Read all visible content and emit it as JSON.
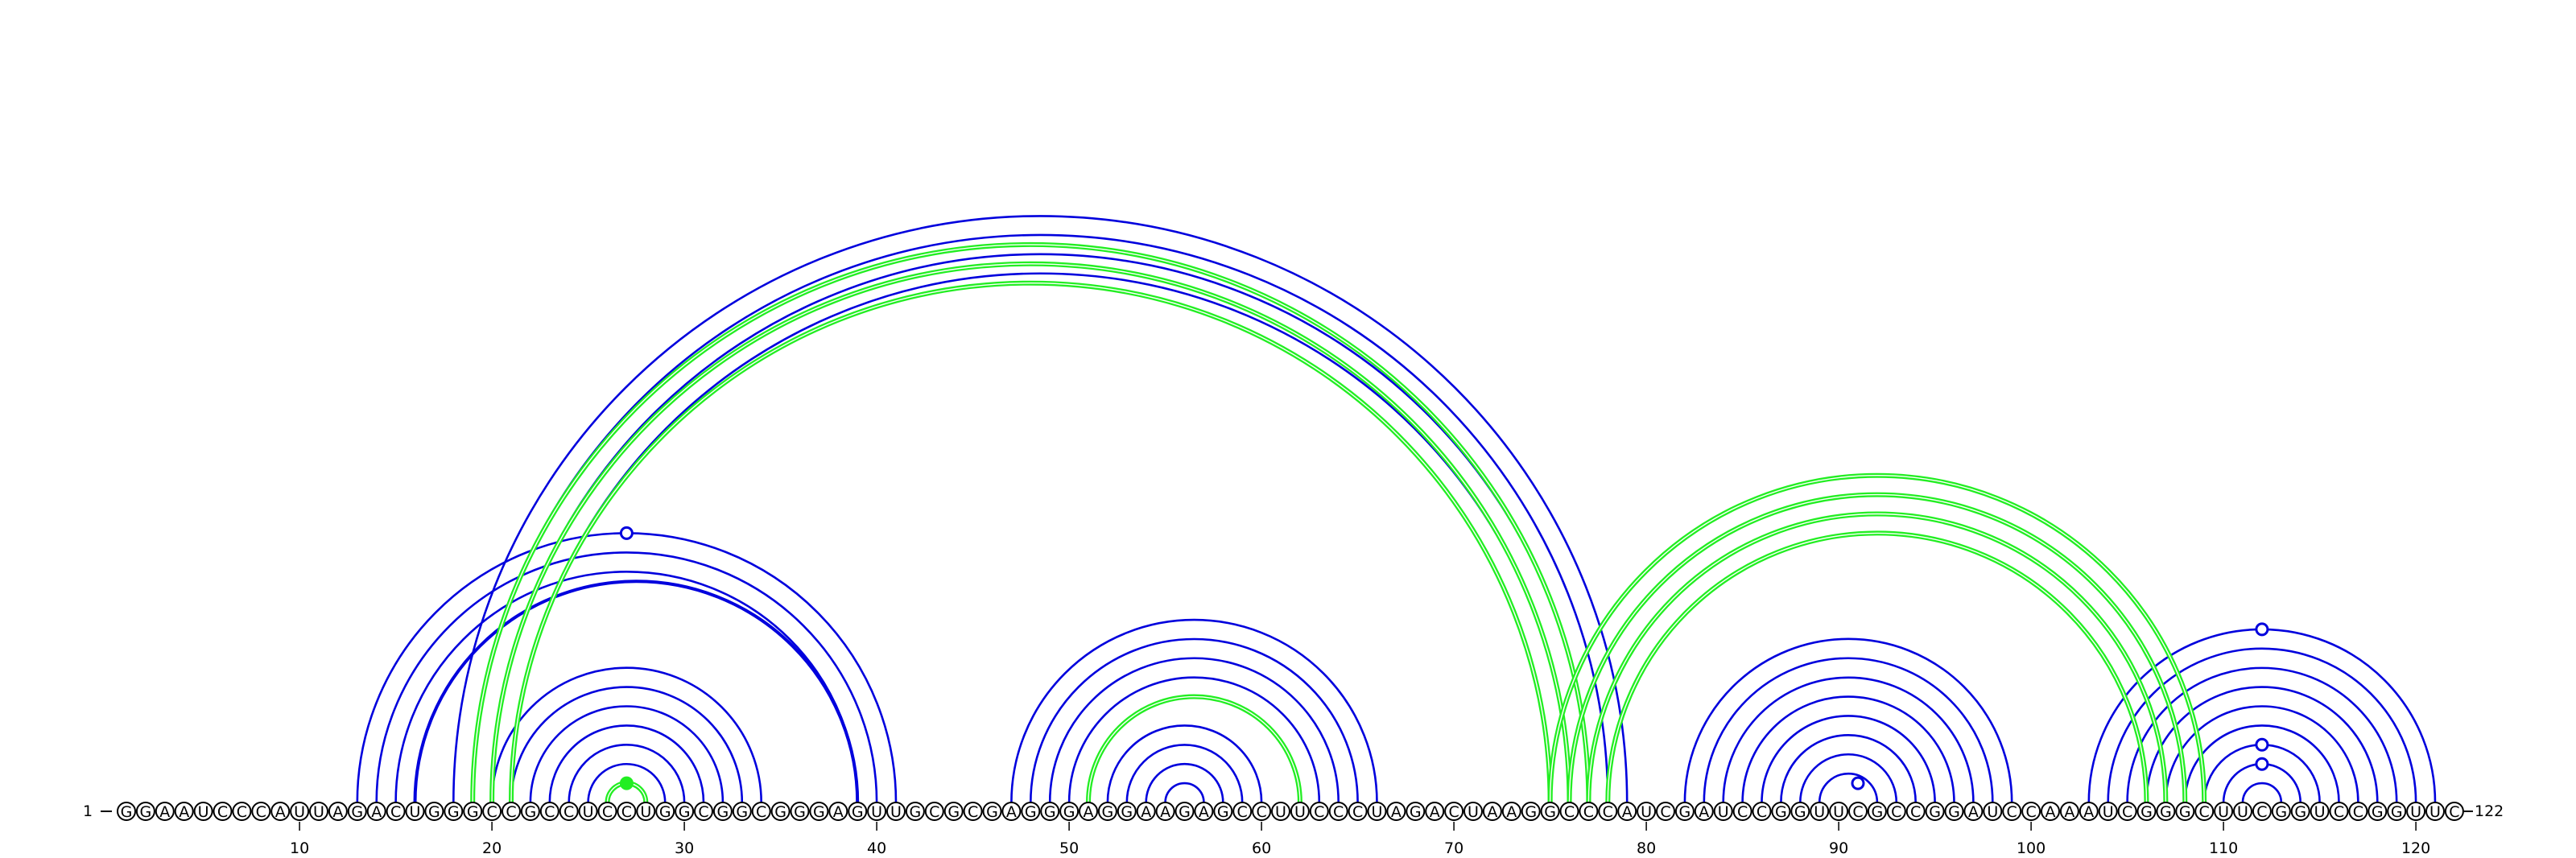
{
  "diagram": {
    "sequence": "GGAAUCCCAUUAGACUGGGCCGCCUCCUGGCGGCGGGAGUUGCGCGAGGGAGGAAGAGCCUUCCCUAGACUAAGGCCCAUCGAUCCGGUUCGCCGGAUCCAAAUCGGGCUUCGGUCCGGUUC",
    "length": 122,
    "start_label": "1",
    "end_label": "122",
    "tick_labels": [
      "10",
      "20",
      "30",
      "40",
      "50",
      "60",
      "70",
      "80",
      "90",
      "100",
      "110",
      "120"
    ],
    "colors": {
      "blue": "#0000dd",
      "green": "#22ee22"
    },
    "blue_stems": [
      {
        "i": 13,
        "j": 41,
        "n": 3,
        "bold": false
      },
      {
        "i": 16,
        "j": 39,
        "n": 1,
        "bold": true
      },
      {
        "i": 18,
        "j": 79,
        "n": 4,
        "bold": false
      },
      {
        "i": 20,
        "j": 34,
        "n": 5,
        "bold": false
      },
      {
        "i": 25,
        "j": 29,
        "n": 1,
        "bold": false
      },
      {
        "i": 47,
        "j": 66,
        "n": 4,
        "bold": false
      },
      {
        "i": 52,
        "j": 60,
        "n": 4,
        "bold": false
      },
      {
        "i": 82,
        "j": 99,
        "n": 8,
        "bold": false
      },
      {
        "i": 103,
        "j": 121,
        "n": 9,
        "bold": false
      }
    ],
    "green_stems": [
      {
        "i": 19,
        "j": 77,
        "n": 3
      },
      {
        "i": 51,
        "j": 62,
        "n": 1
      },
      {
        "i": 75,
        "j": 109,
        "n": 4
      },
      {
        "i": 26,
        "j": 28,
        "n": 1
      }
    ],
    "markers": [
      {
        "i": 13,
        "j": 41,
        "style": "open",
        "color": "blue"
      },
      {
        "i": 26,
        "j": 28,
        "style": "filled",
        "color": "green"
      },
      {
        "i": 90,
        "j": 92,
        "style": "open",
        "color": "blue"
      },
      {
        "i": 103,
        "j": 121,
        "style": "open",
        "color": "blue"
      },
      {
        "i": 109,
        "j": 115,
        "style": "open",
        "color": "blue"
      },
      {
        "i": 110,
        "j": 114,
        "style": "open",
        "color": "blue"
      }
    ]
  }
}
